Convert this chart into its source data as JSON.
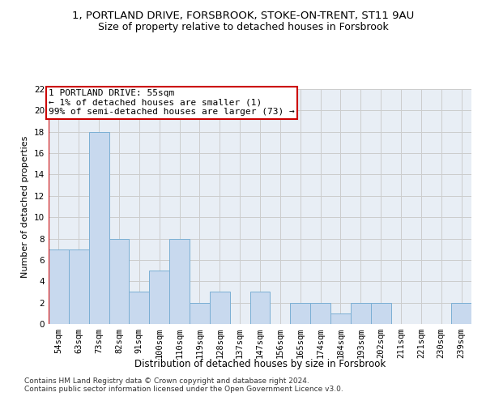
{
  "title1": "1, PORTLAND DRIVE, FORSBROOK, STOKE-ON-TRENT, ST11 9AU",
  "title2": "Size of property relative to detached houses in Forsbrook",
  "xlabel": "Distribution of detached houses by size in Forsbrook",
  "ylabel": "Number of detached properties",
  "categories": [
    "54sqm",
    "63sqm",
    "73sqm",
    "82sqm",
    "91sqm",
    "100sqm",
    "110sqm",
    "119sqm",
    "128sqm",
    "137sqm",
    "147sqm",
    "156sqm",
    "165sqm",
    "174sqm",
    "184sqm",
    "193sqm",
    "202sqm",
    "211sqm",
    "221sqm",
    "230sqm",
    "239sqm"
  ],
  "values": [
    7,
    7,
    18,
    8,
    3,
    5,
    8,
    2,
    3,
    0,
    3,
    0,
    2,
    2,
    1,
    2,
    2,
    0,
    0,
    0,
    2
  ],
  "bar_color": "#c8d9ee",
  "bar_edge_color": "#7bafd4",
  "highlight_color": "#cc0000",
  "annotation_text": "1 PORTLAND DRIVE: 55sqm\n← 1% of detached houses are smaller (1)\n99% of semi-detached houses are larger (73) →",
  "annotation_box_color": "#ffffff",
  "annotation_box_edge": "#cc0000",
  "ylim": [
    0,
    22
  ],
  "yticks": [
    0,
    2,
    4,
    6,
    8,
    10,
    12,
    14,
    16,
    18,
    20,
    22
  ],
  "grid_color": "#cccccc",
  "bg_color": "#e8eef5",
  "footer_text": "Contains HM Land Registry data © Crown copyright and database right 2024.\nContains public sector information licensed under the Open Government Licence v3.0.",
  "title1_fontsize": 9.5,
  "title2_fontsize": 9,
  "xlabel_fontsize": 8.5,
  "ylabel_fontsize": 8,
  "tick_fontsize": 7.5,
  "annotation_fontsize": 8,
  "footer_fontsize": 6.5
}
